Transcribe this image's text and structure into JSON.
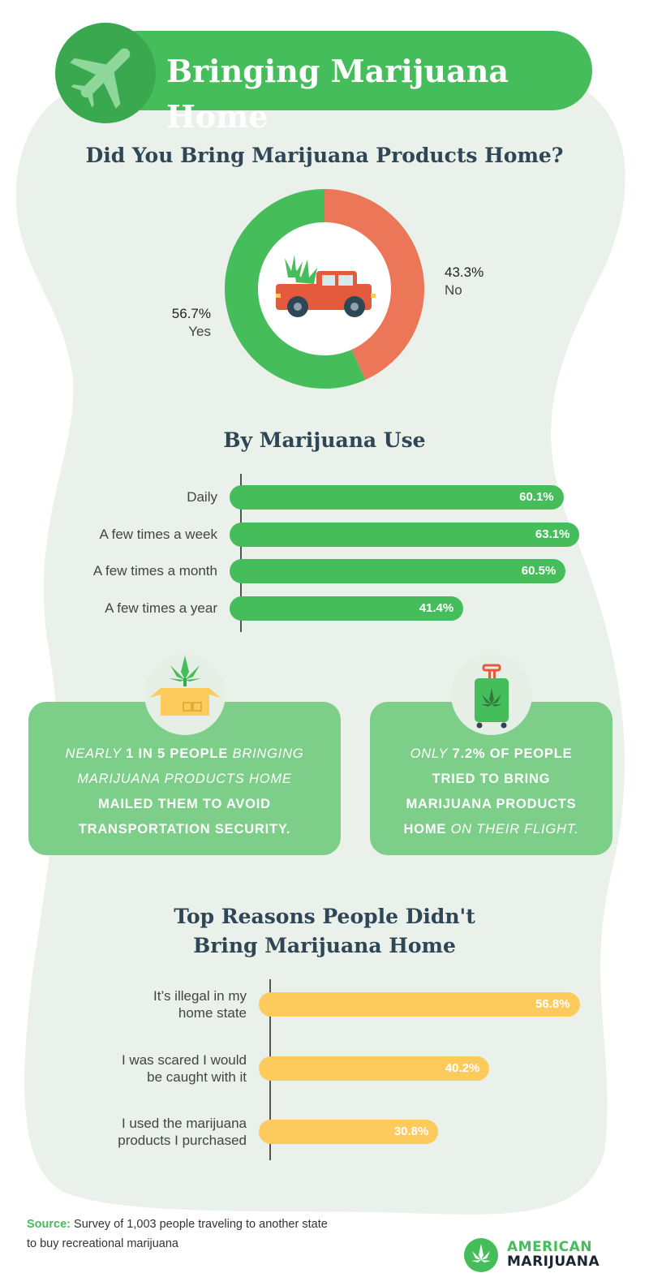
{
  "header": {
    "title": "Bringing Marijuana Home",
    "icon": "airplane-icon"
  },
  "donut": {
    "title": "Did You Bring Marijuana Products Home?",
    "center_icon": "pickup-truck-icon",
    "colors": {
      "yes": "#45bd5a",
      "no": "#ec7758"
    }
  },
  "bars_use": {
    "title": "By Marijuana Use"
  },
  "callouts": {
    "mail": {
      "icon": "cannabis-box-icon",
      "line1_em": "NEARLY",
      "line1_rest": " 1 IN 5 PEOPLE ",
      "line1_em2": "BRINGING",
      "line2_em": "MARIJUANA PRODUCTS HOME",
      "line3": "MAILED THEM TO AVOID",
      "line4": "TRANSPORTATION SECURITY."
    },
    "flight": {
      "icon": "suitcase-icon",
      "line1_em": "ONLY",
      "line1_rest": " 7.2% OF PEOPLE",
      "line2": "TRIED TO BRING",
      "line3": "MARIJUANA PRODUCTS",
      "line4_rest": "HOME ",
      "line4_em": "ON THEIR FLIGHT."
    }
  },
  "reasons": {
    "title_line1": "Top Reasons People Didn't",
    "title_line2": "Bring Marijuana Home"
  },
  "footer": {
    "source_label": "Source:",
    "source_text": " Survey of 1,003 people traveling to another state",
    "source_text2": "to buy recreational marijuana",
    "brand_line1": "AMERICAN",
    "brand_line2": "MARIJUANA"
  },
  "chart_data": [
    {
      "type": "pie",
      "title": "Did You Bring Marijuana Products Home?",
      "categories": [
        "Yes",
        "No"
      ],
      "values": [
        56.7,
        43.3
      ],
      "labels": [
        "56.7%",
        "43.3%"
      ]
    },
    {
      "type": "bar",
      "title": "By Marijuana Use",
      "categories": [
        "Daily",
        "A few times a week",
        "A few times a month",
        "A few times a year"
      ],
      "values": [
        60.1,
        63.1,
        60.5,
        41.4
      ],
      "labels": [
        "60.1%",
        "63.1%",
        "60.5%",
        "41.4%"
      ],
      "color": "#45bd5a"
    },
    {
      "type": "bar",
      "title": "Top Reasons People Didn't Bring Marijuana Home",
      "categories": [
        [
          "It’s illegal in my",
          "home state"
        ],
        [
          "I was scared I would",
          "be caught with it"
        ],
        [
          "I used the marijuana",
          "products I purchased"
        ]
      ],
      "values": [
        56.8,
        40.2,
        30.8
      ],
      "labels": [
        "56.8%",
        "40.2%",
        "30.8%"
      ],
      "color": "#fdcb5b"
    }
  ]
}
